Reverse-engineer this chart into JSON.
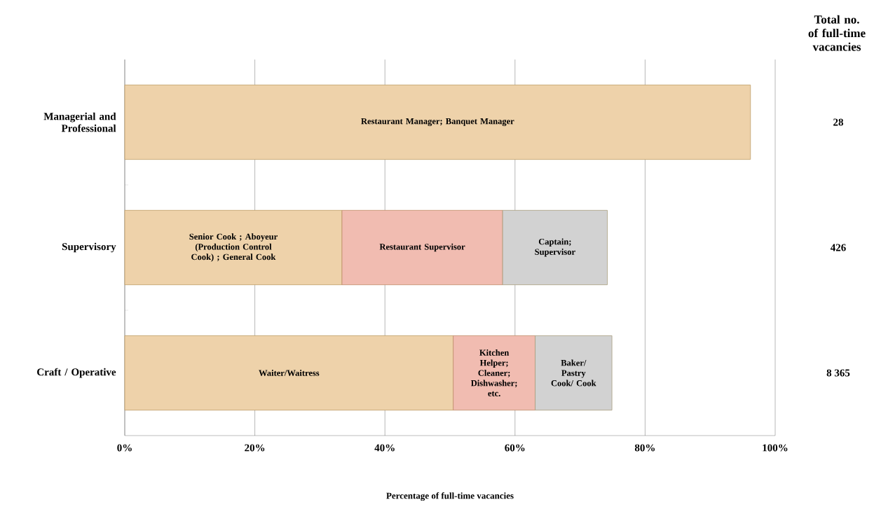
{
  "chart_data": {
    "type": "bar",
    "orientation": "horizontal",
    "stacked": true,
    "categories": [
      "Managerial and Professional",
      "Supervisory",
      "Craft / Operative"
    ],
    "series": [
      {
        "color": "#eed2aa",
        "values": [
          96.2,
          33.4,
          50.5
        ],
        "value_labels": [
          "Restaurant Manager; Banquet Manager",
          "Senior Cook ; Aboyeur (Production Control Cook) ; General Cook",
          "Waiter/Waitress"
        ]
      },
      {
        "color": "#f1bcb1",
        "values": [
          null,
          24.7,
          12.6
        ],
        "value_labels": [
          null,
          "Restaurant Supervisor",
          "Kitchen Helper; Cleaner; Dishwasher; etc."
        ]
      },
      {
        "color": "#d2d2d2",
        "values": [
          null,
          16.1,
          11.8
        ],
        "value_labels": [
          null,
          "Captain; Supervisor",
          "Baker/ Pastry Cook/ Cook"
        ]
      }
    ],
    "xlim": [
      0,
      100
    ],
    "xticks": [
      {
        "value": 0,
        "label": "0%"
      },
      {
        "value": 20,
        "label": "20%"
      },
      {
        "value": 40,
        "label": "40%"
      },
      {
        "value": 60,
        "label": "60%"
      },
      {
        "value": 80,
        "label": "80%"
      },
      {
        "value": 100,
        "label": "100%"
      }
    ],
    "xlabel": "Percentage of full-time vacancies",
    "grid": "x",
    "annotations": [
      "Total no. of full-time vacancies",
      "28",
      "426",
      "8 365"
    ]
  }
}
